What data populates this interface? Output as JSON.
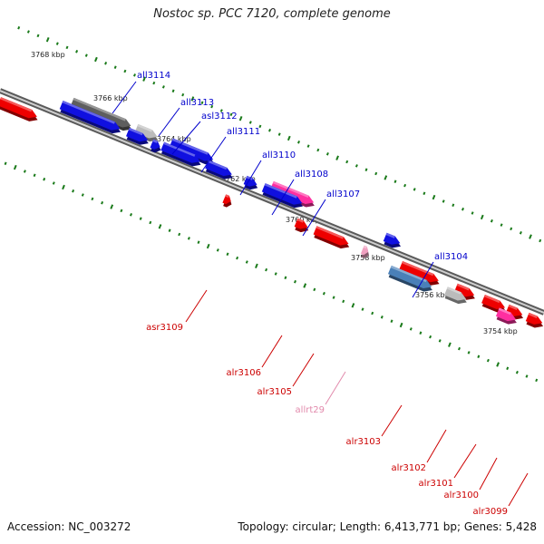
{
  "title": "Nostoc sp. PCC 7120, complete genome",
  "footer": {
    "accession": "Accession: NC_003272",
    "summary": "Topology: circular; Length: 6,413,771 bp; Genes: 5,428"
  },
  "colors": {
    "background": "#ffffff",
    "backbone": "#7a7a7a",
    "tick_dots": "#1a7a1a",
    "label_top": "#0000cc",
    "label_bottom": "#cc0000",
    "label_rna": "#e28aac"
  },
  "scale": {
    "unit": "kbp",
    "ticks": [
      "3768 kbp",
      "3766 kbp",
      "3764 kbp",
      "3762 kbp",
      "3760 kbp",
      "3758 kbp",
      "3756 kbp",
      "3754 kbp"
    ]
  },
  "genes_top": [
    {
      "label": "all3114",
      "color": "#5e5e5e"
    },
    {
      "label": "all3113",
      "color": "#bbbbbb"
    },
    {
      "label": "asl3112",
      "color": "#1010e0"
    },
    {
      "label": "all3111",
      "color": "#1010e0"
    },
    {
      "label": "all3110",
      "color": "#1010e0"
    },
    {
      "label": "all3108",
      "color": "#1010e0"
    },
    {
      "label": "all3107",
      "color": "#ff2fa0"
    },
    {
      "label": "all3104",
      "color": "#1010e0"
    }
  ],
  "genes_bottom": [
    {
      "label": "asr3109",
      "color": "#ee0000"
    },
    {
      "label": "alr3106",
      "color": "#ee0000"
    },
    {
      "label": "alr3105",
      "color": "#ee0000"
    },
    {
      "label": "allrt29",
      "color": "#f0a0c0"
    },
    {
      "label": "alr3103",
      "color": "#ee0000"
    },
    {
      "label": "alr3102",
      "color": "#4a80b8"
    },
    {
      "label": "alr3101",
      "color": "#bbbbbb"
    },
    {
      "label": "alr3100",
      "color": "#ff2fa0"
    },
    {
      "label": "alr3099",
      "color": "#ee0000"
    }
  ]
}
